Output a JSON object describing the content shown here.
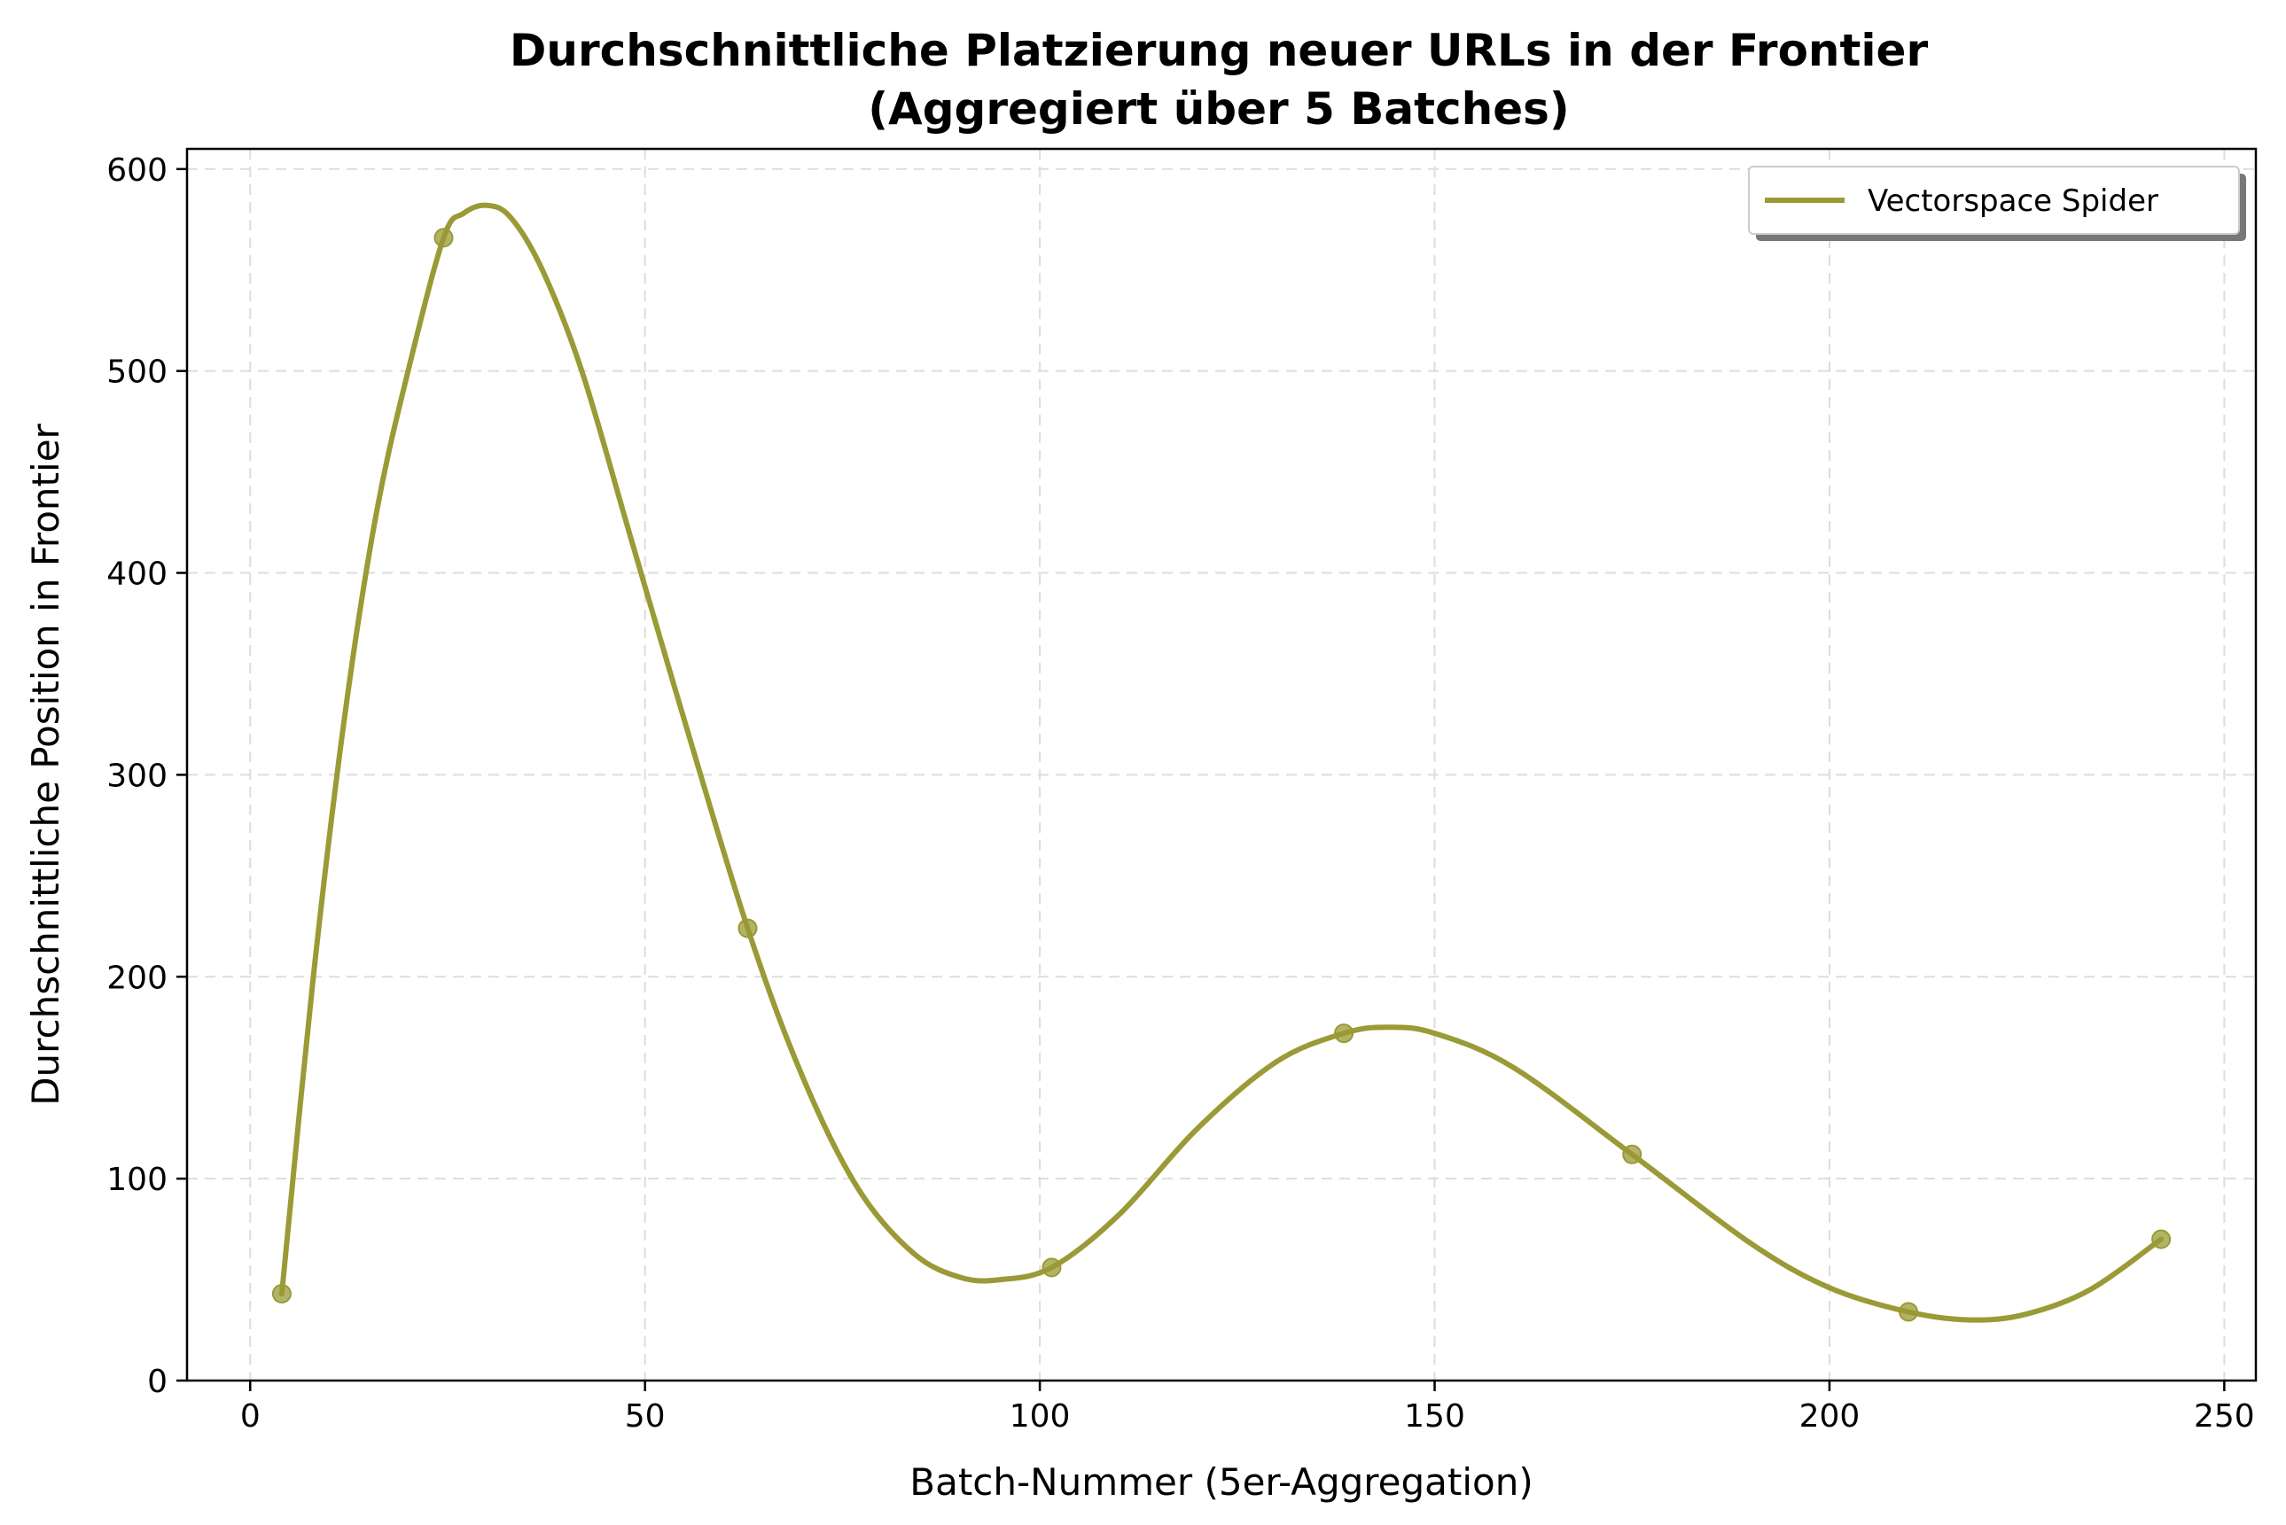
{
  "chart_data": {
    "type": "line",
    "title_line1": "Durchschnittliche Platzierung neuer URLs in der Frontier",
    "title_line2": "(Aggregiert über 5 Batches)",
    "xlabel": "Batch-Nummer (5er-Aggregation)",
    "ylabel": "Durchschnittliche Position in Frontier",
    "xlim": [
      -8,
      254
    ],
    "ylim": [
      0,
      610
    ],
    "xticks": [
      0,
      50,
      100,
      150,
      200,
      250
    ],
    "yticks": [
      0,
      100,
      200,
      300,
      400,
      500,
      600
    ],
    "grid": true,
    "legend_position": "top-right",
    "series": [
      {
        "name": "Vectorspace Spider",
        "color": "#9a9a36",
        "points": [
          {
            "x": 4,
            "y": 43
          },
          {
            "x": 24.5,
            "y": 566
          },
          {
            "x": 63,
            "y": 224
          },
          {
            "x": 101.5,
            "y": 56
          },
          {
            "x": 138.5,
            "y": 172
          },
          {
            "x": 175,
            "y": 112
          },
          {
            "x": 210,
            "y": 34
          },
          {
            "x": 242,
            "y": 70
          }
        ],
        "curve": [
          {
            "x": 4,
            "y": 43
          },
          {
            "x": 8,
            "y": 200
          },
          {
            "x": 12,
            "y": 330
          },
          {
            "x": 16,
            "y": 430
          },
          {
            "x": 20,
            "y": 500
          },
          {
            "x": 24.5,
            "y": 566
          },
          {
            "x": 27,
            "y": 578
          },
          {
            "x": 30,
            "y": 582
          },
          {
            "x": 33,
            "y": 576
          },
          {
            "x": 37,
            "y": 550
          },
          {
            "x": 42,
            "y": 500
          },
          {
            "x": 48,
            "y": 420
          },
          {
            "x": 54,
            "y": 340
          },
          {
            "x": 63,
            "y": 224
          },
          {
            "x": 70,
            "y": 150
          },
          {
            "x": 77,
            "y": 95
          },
          {
            "x": 84,
            "y": 63
          },
          {
            "x": 90,
            "y": 51
          },
          {
            "x": 95,
            "y": 50
          },
          {
            "x": 101.5,
            "y": 56
          },
          {
            "x": 110,
            "y": 82
          },
          {
            "x": 120,
            "y": 125
          },
          {
            "x": 130,
            "y": 158
          },
          {
            "x": 138.5,
            "y": 172
          },
          {
            "x": 144,
            "y": 175
          },
          {
            "x": 150,
            "y": 172
          },
          {
            "x": 160,
            "y": 155
          },
          {
            "x": 175,
            "y": 112
          },
          {
            "x": 190,
            "y": 68
          },
          {
            "x": 200,
            "y": 46
          },
          {
            "x": 210,
            "y": 34
          },
          {
            "x": 218,
            "y": 30
          },
          {
            "x": 225,
            "y": 33
          },
          {
            "x": 233,
            "y": 45
          },
          {
            "x": 242,
            "y": 70
          }
        ]
      }
    ]
  }
}
